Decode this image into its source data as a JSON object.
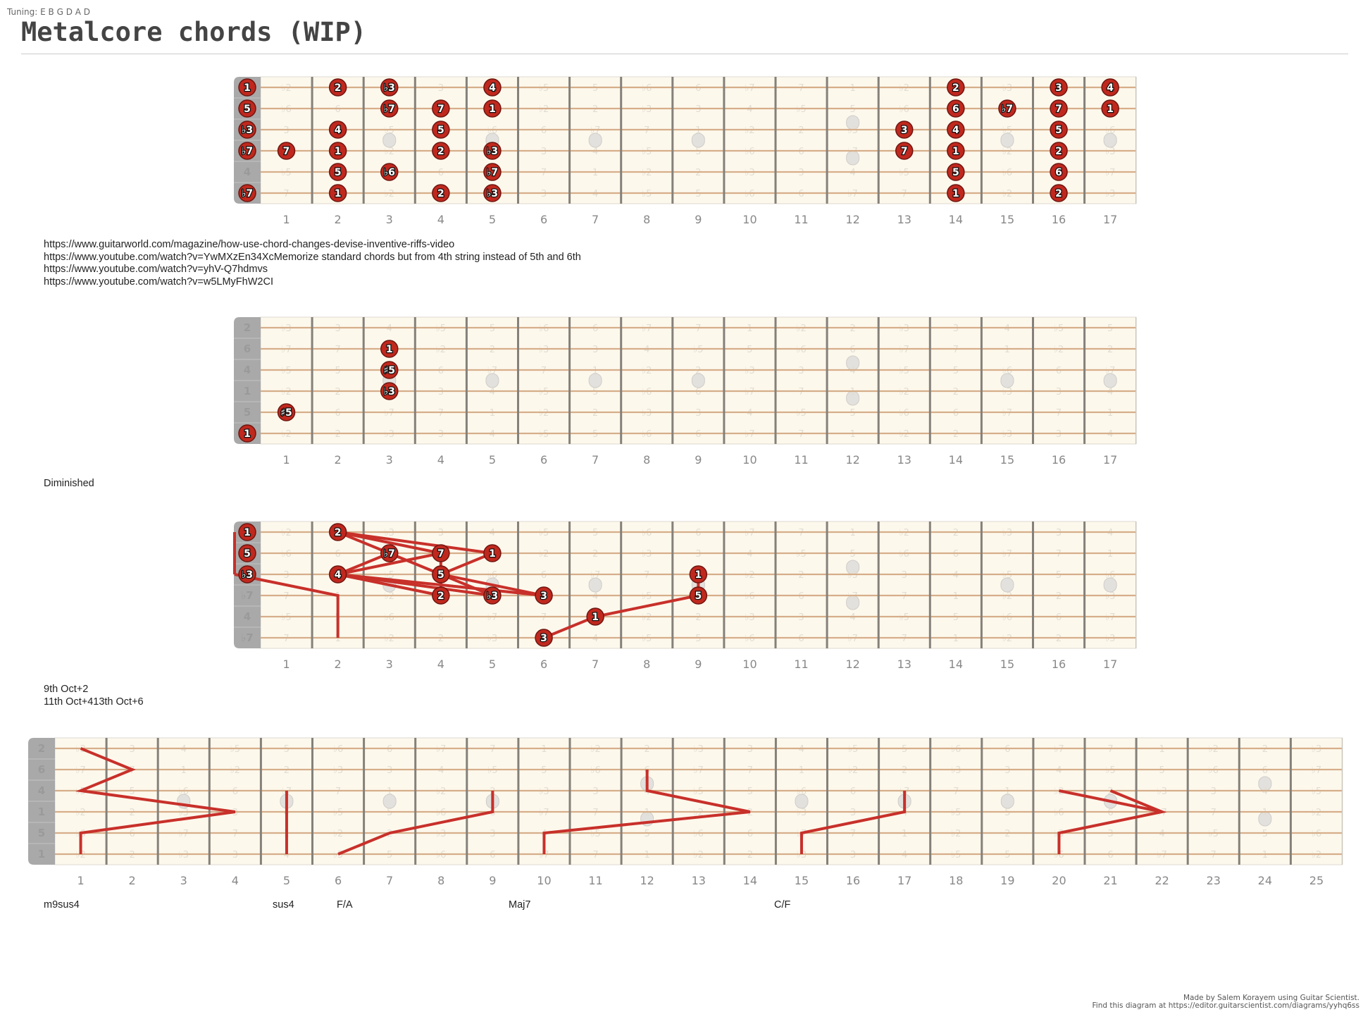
{
  "header": {
    "tuning": "Tuning: E B G D A D",
    "title": "Metalcore chords (WIP)"
  },
  "interval_names": [
    "1",
    "♭2",
    "2",
    "♭3",
    "3",
    "4",
    "♭5",
    "5",
    "♭6",
    "6",
    "♭7",
    "7"
  ],
  "tuning_notes": [
    "E",
    "B",
    "G",
    "D",
    "A",
    "D"
  ],
  "colors": {
    "note_fill": "#c0281e",
    "line": "#c8302a",
    "board": "#fdf8ec",
    "nut": "#a9a9a9",
    "string": "#d6ae8a",
    "fret": "#858079"
  },
  "texts": {
    "links": [
      "https://www.guitarworld.com/magazine/how-use-chord-changes-devise-inventive-riffs-video",
      "https://www.youtube.com/watch?v=YwMXzEn34XcMemorize standard chords but from 4th string instead of 5th and 6th",
      "https://www.youtube.com/watch?v=yhV-Q7hdmvs",
      "https://www.youtube.com/watch?v=w5LMyFhW2CI"
    ],
    "diminished": "Diminished",
    "octave_notes": [
      "9th Oct+2",
      "11th Oct+413th Oct+6"
    ],
    "chord_labels": [
      "m9sus4",
      "sus4",
      "F/A",
      "Maj7",
      "C/F"
    ]
  },
  "diagrams": [
    {
      "root": "E",
      "frets": 17,
      "notes": [
        [
          1,
          0,
          "1"
        ],
        [
          1,
          2,
          "2"
        ],
        [
          1,
          3,
          "♭3"
        ],
        [
          1,
          5,
          "4"
        ],
        [
          1,
          14,
          "2"
        ],
        [
          1,
          16,
          "3"
        ],
        [
          1,
          17,
          "4"
        ],
        [
          2,
          0,
          "5"
        ],
        [
          2,
          3,
          "♭7"
        ],
        [
          2,
          4,
          "7"
        ],
        [
          2,
          5,
          "1"
        ],
        [
          2,
          14,
          "6"
        ],
        [
          2,
          15,
          "♭7"
        ],
        [
          2,
          16,
          "7"
        ],
        [
          2,
          17,
          "1"
        ],
        [
          3,
          0,
          "♭3"
        ],
        [
          3,
          2,
          "4"
        ],
        [
          3,
          4,
          "5"
        ],
        [
          3,
          13,
          "3"
        ],
        [
          3,
          14,
          "4"
        ],
        [
          3,
          16,
          "5"
        ],
        [
          4,
          0,
          "♭7"
        ],
        [
          4,
          1,
          "7"
        ],
        [
          4,
          2,
          "1"
        ],
        [
          4,
          4,
          "2"
        ],
        [
          4,
          5,
          "♭3"
        ],
        [
          4,
          13,
          "7"
        ],
        [
          4,
          14,
          "1"
        ],
        [
          4,
          16,
          "2"
        ],
        [
          5,
          2,
          "5"
        ],
        [
          5,
          3,
          "♭6"
        ],
        [
          5,
          5,
          "♭7"
        ],
        [
          5,
          14,
          "5"
        ],
        [
          5,
          16,
          "6"
        ],
        [
          6,
          0,
          "♭7"
        ],
        [
          6,
          2,
          "1"
        ],
        [
          6,
          4,
          "2"
        ],
        [
          6,
          5,
          "♭3"
        ],
        [
          6,
          14,
          "1"
        ],
        [
          6,
          16,
          "2"
        ]
      ],
      "lines": []
    },
    {
      "root": "D",
      "frets": 17,
      "notes": [
        [
          2,
          3,
          "1"
        ],
        [
          3,
          3,
          "♯5"
        ],
        [
          4,
          3,
          "♭3"
        ],
        [
          5,
          1,
          "♯5"
        ],
        [
          6,
          0,
          "1"
        ]
      ],
      "lines": []
    },
    {
      "root": "E",
      "frets": 17,
      "notes": [
        [
          1,
          0,
          "1"
        ],
        [
          2,
          0,
          "5"
        ],
        [
          3,
          0,
          "♭3"
        ],
        [
          1,
          2,
          "2"
        ],
        [
          2,
          3,
          "♭7"
        ],
        [
          2,
          4,
          "7"
        ],
        [
          2,
          5,
          "1"
        ],
        [
          3,
          2,
          "4"
        ],
        [
          3,
          4,
          "5"
        ],
        [
          3,
          9,
          "1"
        ],
        [
          4,
          4,
          "2"
        ],
        [
          4,
          5,
          "♭3"
        ],
        [
          4,
          6,
          "3"
        ],
        [
          4,
          9,
          "5"
        ],
        [
          5,
          7,
          "1"
        ],
        [
          6,
          6,
          "3"
        ]
      ],
      "lines": [
        [
          [
            1,
            0
          ],
          [
            3,
            0
          ]
        ],
        [
          [
            3,
            0
          ],
          [
            4,
            2
          ],
          [
            6,
            2
          ]
        ],
        [
          [
            1,
            2
          ],
          [
            2,
            5
          ]
        ],
        [
          [
            1,
            2
          ],
          [
            2,
            4
          ]
        ],
        [
          [
            1,
            2
          ],
          [
            2,
            3
          ]
        ],
        [
          [
            2,
            3
          ],
          [
            3,
            2
          ]
        ],
        [
          [
            2,
            4
          ],
          [
            3,
            2
          ]
        ],
        [
          [
            2,
            3
          ],
          [
            3,
            4
          ]
        ],
        [
          [
            2,
            4
          ],
          [
            3,
            4
          ]
        ],
        [
          [
            2,
            5
          ],
          [
            3,
            4
          ]
        ],
        [
          [
            3,
            2
          ],
          [
            4,
            4
          ]
        ],
        [
          [
            3,
            2
          ],
          [
            4,
            5
          ]
        ],
        [
          [
            3,
            2
          ],
          [
            4,
            6
          ]
        ],
        [
          [
            3,
            4
          ],
          [
            4,
            4
          ]
        ],
        [
          [
            3,
            4
          ],
          [
            4,
            5
          ]
        ],
        [
          [
            3,
            4
          ],
          [
            4,
            6
          ]
        ],
        [
          [
            3,
            9
          ],
          [
            4,
            9
          ],
          [
            5,
            7
          ],
          [
            6,
            6
          ]
        ]
      ]
    },
    {
      "root": "D",
      "frets": 25,
      "notes": [],
      "lines": [
        [
          [
            1,
            1
          ],
          [
            2,
            2
          ],
          [
            3,
            1
          ],
          [
            4,
            4
          ],
          [
            5,
            1
          ],
          [
            6,
            1
          ]
        ],
        [
          [
            3,
            5
          ],
          [
            6,
            5
          ]
        ],
        [
          [
            6,
            6
          ],
          [
            5,
            7
          ],
          [
            4,
            9
          ],
          [
            3,
            9
          ]
        ],
        [
          [
            2,
            12
          ],
          [
            3,
            12
          ],
          [
            4,
            14
          ],
          [
            5,
            10
          ],
          [
            6,
            10
          ]
        ],
        [
          [
            6,
            15
          ],
          [
            5,
            15
          ],
          [
            4,
            17
          ],
          [
            3,
            17
          ]
        ],
        [
          [
            3,
            20
          ],
          [
            4,
            22
          ]
        ],
        [
          [
            3,
            21
          ],
          [
            4,
            22
          ],
          [
            5,
            20
          ],
          [
            6,
            20
          ]
        ]
      ]
    }
  ],
  "footer": {
    "line1": "Made by Salem Korayem using Guitar Scientist.",
    "line2": "Find this diagram at https://editor.guitarscientist.com/diagrams/yyhq6ss"
  }
}
